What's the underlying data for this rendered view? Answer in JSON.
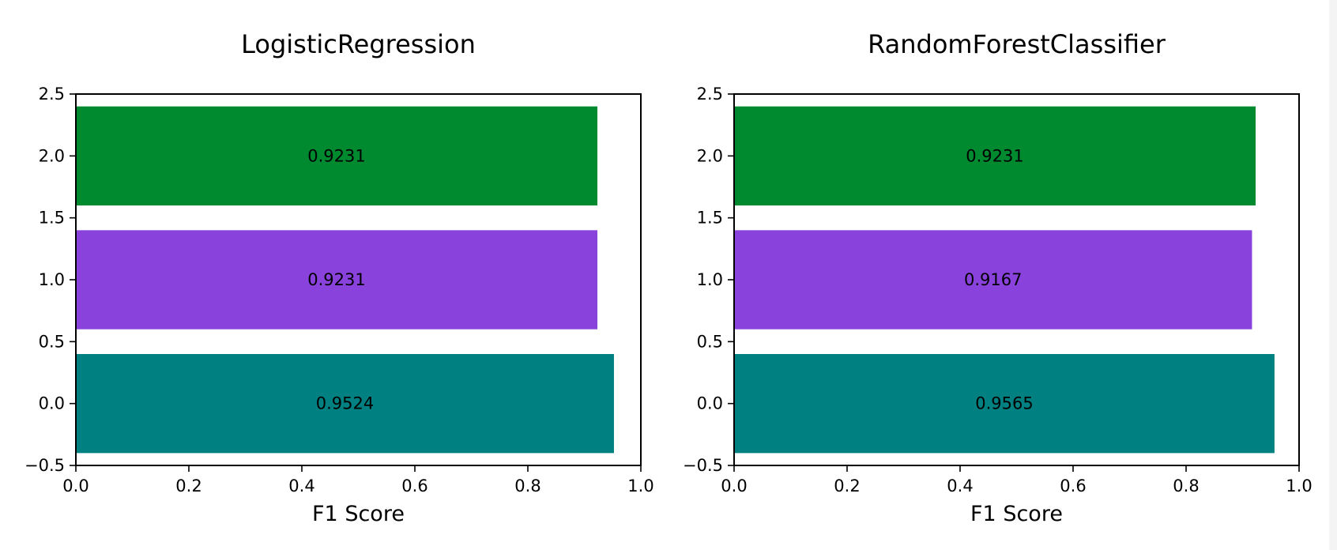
{
  "chart_data": [
    {
      "type": "bar",
      "orientation": "horizontal",
      "title": "LogisticRegression",
      "xlabel": "F1 Score",
      "ylabel": "",
      "xlim": [
        0,
        1
      ],
      "ylim": [
        -0.5,
        2.5
      ],
      "y": [
        0,
        1,
        2
      ],
      "values": [
        0.9524,
        0.9231,
        0.9231
      ],
      "data_labels": [
        "0.9524",
        "0.9231",
        "0.9231"
      ],
      "colors": [
        "#008080",
        "#8a42dc",
        "#008a30"
      ],
      "xticks": [
        "0.0",
        "0.2",
        "0.4",
        "0.6",
        "0.8",
        "1.0"
      ],
      "yticks": [
        "−0.5",
        "0.0",
        "0.5",
        "1.0",
        "1.5",
        "2.0",
        "2.5"
      ],
      "grid": false
    },
    {
      "type": "bar",
      "orientation": "horizontal",
      "title": "RandomForestClassifier",
      "xlabel": "F1 Score",
      "ylabel": "",
      "xlim": [
        0,
        1
      ],
      "ylim": [
        -0.5,
        2.5
      ],
      "y": [
        0,
        1,
        2
      ],
      "values": [
        0.9565,
        0.9167,
        0.9231
      ],
      "data_labels": [
        "0.9565",
        "0.9167",
        "0.9231"
      ],
      "colors": [
        "#008080",
        "#8a42dc",
        "#008a30"
      ],
      "xticks": [
        "0.0",
        "0.2",
        "0.4",
        "0.6",
        "0.8",
        "1.0"
      ],
      "yticks": [
        "−0.5",
        "0.0",
        "0.5",
        "1.0",
        "1.5",
        "2.0",
        "2.5"
      ],
      "grid": false
    }
  ]
}
